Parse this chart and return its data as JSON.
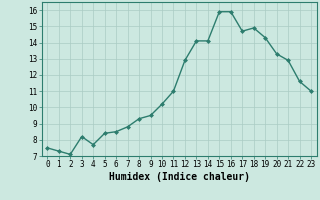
{
  "x": [
    0,
    1,
    2,
    3,
    4,
    5,
    6,
    7,
    8,
    9,
    10,
    11,
    12,
    13,
    14,
    15,
    16,
    17,
    18,
    19,
    20,
    21,
    22,
    23
  ],
  "y": [
    7.5,
    7.3,
    7.1,
    8.2,
    7.7,
    8.4,
    8.5,
    8.8,
    9.3,
    9.5,
    10.2,
    11.0,
    12.9,
    14.1,
    14.1,
    15.9,
    15.9,
    14.7,
    14.9,
    14.3,
    13.3,
    12.9,
    11.6,
    11.0
  ],
  "line_color": "#2d7d6e",
  "marker": "D",
  "marker_size": 2.0,
  "bg_color": "#cce8e0",
  "grid_color": "#aaccc4",
  "xlabel": "Humidex (Indice chaleur)",
  "ylim": [
    7,
    16.5
  ],
  "xlim": [
    -0.5,
    23.5
  ],
  "yticks": [
    7,
    8,
    9,
    10,
    11,
    12,
    13,
    14,
    15,
    16
  ],
  "xticks": [
    0,
    1,
    2,
    3,
    4,
    5,
    6,
    7,
    8,
    9,
    10,
    11,
    12,
    13,
    14,
    15,
    16,
    17,
    18,
    19,
    20,
    21,
    22,
    23
  ],
  "tick_fontsize": 5.5,
  "xlabel_fontsize": 7.0,
  "line_width": 1.0
}
